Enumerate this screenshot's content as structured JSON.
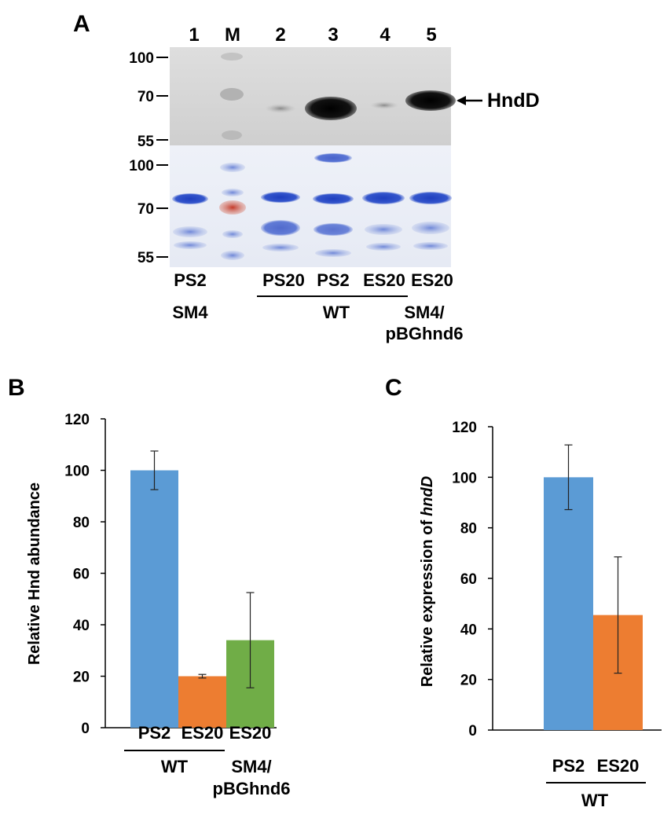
{
  "panel_a": {
    "letter": "A",
    "lane_numbers": [
      "1",
      "M",
      "2",
      "3",
      "4",
      "5"
    ],
    "mw_markers_top": [
      "100",
      "70",
      "55"
    ],
    "mw_markers_bottom": [
      "100",
      "70",
      "55"
    ],
    "band_label": "HndD",
    "sample_labels": [
      "PS2",
      "PS20",
      "PS2",
      "ES20",
      "ES20"
    ],
    "strain_labels": [
      "SM4",
      "WT",
      "SM4/",
      "pBGhnd6"
    ]
  },
  "chart_data": [
    {
      "panel": "B",
      "type": "bar",
      "title": "",
      "xlabel": "",
      "ylabel": "Relative Hnd abundance",
      "ylim": [
        0,
        120
      ],
      "yticks": [
        "0",
        "20",
        "40",
        "60",
        "80",
        "100",
        "120"
      ],
      "categories": [
        "PS2",
        "ES20",
        "ES20"
      ],
      "values": [
        100,
        20,
        34
      ],
      "errors": [
        7.5,
        0.7,
        18.5
      ],
      "colors": [
        "#5b9bd5",
        "#ed7d31",
        "#70ad47"
      ],
      "group_labels": [
        "WT",
        "SM4/",
        "pBGhnd6"
      ],
      "grid": false
    },
    {
      "panel": "C",
      "type": "bar",
      "title": "",
      "xlabel": "",
      "ylabel": "Relative expression of",
      "ylabel_italic": "hndD",
      "ylim": [
        0,
        120
      ],
      "yticks": [
        "0",
        "20",
        "40",
        "60",
        "80",
        "100",
        "120"
      ],
      "categories": [
        "PS2",
        "ES20"
      ],
      "values": [
        100,
        45.5
      ],
      "errors": [
        12.8,
        23
      ],
      "colors": [
        "#5b9bd5",
        "#ed7d31"
      ],
      "group_labels": [
        "WT"
      ],
      "grid": false
    }
  ]
}
